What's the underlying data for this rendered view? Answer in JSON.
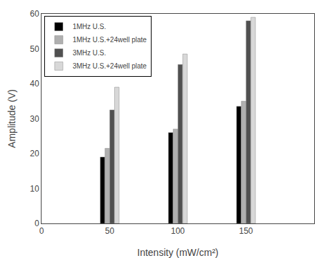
{
  "chart_data": {
    "type": "bar",
    "x": [
      50,
      100,
      150
    ],
    "series": [
      {
        "name": "1MHz U.S.",
        "color": "#000000",
        "values": [
          19,
          26,
          33.5
        ]
      },
      {
        "name": "1MHz U.S.+24well plate",
        "color": "#b0b0b0",
        "values": [
          21.5,
          27,
          35
        ]
      },
      {
        "name": "3MHz U.S.",
        "color": "#505050",
        "values": [
          32.5,
          45.5,
          58
        ]
      },
      {
        "name": "3MHz U.S.+24well plate",
        "color": "#d8d8d8",
        "values": [
          39,
          48.5,
          59
        ]
      }
    ],
    "xlabel": "Intensity (mW/cm²)",
    "ylabel": "Amplitude (V)",
    "xlim": [
      0,
      200
    ],
    "xticks": [
      0,
      50,
      100,
      150
    ],
    "ylim": [
      0,
      60
    ],
    "yticks": [
      0,
      10,
      20,
      30,
      40,
      50,
      60
    ],
    "grid": false,
    "legend": "upper left"
  }
}
